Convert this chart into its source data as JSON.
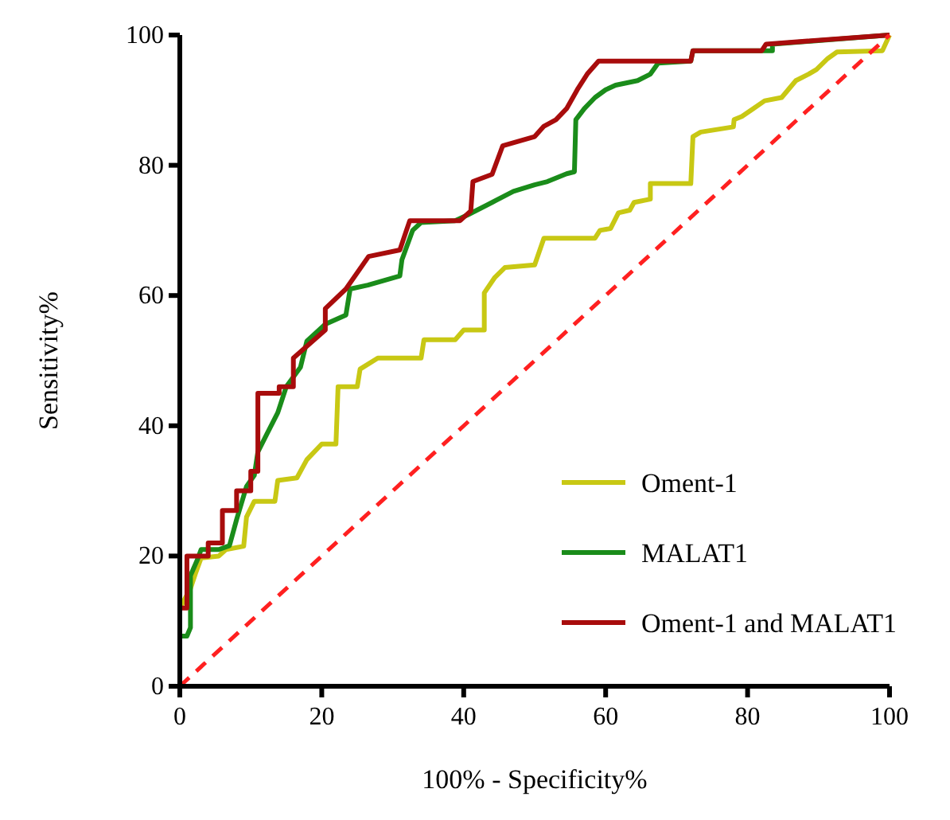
{
  "chart_data": {
    "type": "line",
    "xlabel": "100% - Specificity%",
    "ylabel": "Sensitivity%",
    "xlim": [
      0,
      100
    ],
    "ylim": [
      0,
      100
    ],
    "xticks": [
      0,
      20,
      40,
      60,
      80,
      100
    ],
    "yticks": [
      0,
      20,
      40,
      60,
      80,
      100
    ],
    "grid": false,
    "legend": "bottom right",
    "marker": "none",
    "series": [
      {
        "name": "Oment-1",
        "color": "#c8c814",
        "x": [
          0,
          0,
          1.5,
          2.2,
          3,
          5.5,
          6.5,
          9,
          9.4,
          10.5,
          13.4,
          13.8,
          16.5,
          17.9,
          20,
          22,
          22.3,
          25,
          25.4,
          27.9,
          34,
          34.4,
          38.8,
          40,
          42.9,
          42.9,
          44.4,
          45.8,
          50,
          51.3,
          58.5,
          59.2,
          60.7,
          61.8,
          63.4,
          64,
          66.3,
          66.3,
          72,
          72.3,
          73.4,
          78,
          78.1,
          79.2,
          80.8,
          82.4,
          84.8,
          86.8,
          88.6,
          89.7,
          91.3,
          92.6,
          99,
          100
        ],
        "values": [
          0,
          12,
          15,
          17.3,
          19.7,
          20,
          21,
          21.5,
          26,
          28.4,
          28.4,
          31.6,
          32,
          34.8,
          37.2,
          37.2,
          46,
          46,
          48.7,
          50.4,
          50.4,
          53.2,
          53.2,
          54.7,
          54.7,
          60.4,
          62.8,
          64.3,
          64.7,
          68.8,
          68.8,
          70,
          70.3,
          72.7,
          73.1,
          74.3,
          74.8,
          77.2,
          77.2,
          84.4,
          85.1,
          85.9,
          87,
          87.5,
          88.7,
          89.9,
          90.4,
          93,
          94,
          94.7,
          96.4,
          97.4,
          97.6,
          100
        ]
      },
      {
        "name": "MALAT1",
        "color": "#1a8c1a",
        "x": [
          0,
          0,
          1,
          1.5,
          1.5,
          2.5,
          3,
          5.5,
          7,
          8,
          9.4,
          10.5,
          11,
          12.3,
          13.8,
          15,
          17,
          17.9,
          20.5,
          23.4,
          24,
          26.5,
          31,
          31.3,
          32.8,
          34,
          38.8,
          40.6,
          44,
          47,
          50,
          51.8,
          54.5,
          55.6,
          55.8,
          57,
          58.5,
          60,
          61.4,
          64.5,
          66.3,
          67.4,
          72,
          72.3,
          83.5,
          83.5,
          100
        ],
        "values": [
          0,
          7.7,
          7.7,
          9,
          17,
          19.5,
          21,
          21,
          21.6,
          25.6,
          30.7,
          32.4,
          36,
          38.8,
          42,
          46,
          49,
          53,
          55.6,
          57,
          61,
          61.6,
          63,
          65.5,
          70,
          71.2,
          71.5,
          72.4,
          74.3,
          76,
          77,
          77.5,
          78.7,
          79,
          87,
          88.7,
          90.4,
          91.6,
          92.3,
          93,
          94,
          95.7,
          96,
          97.6,
          97.6,
          98.6,
          100
        ]
      },
      {
        "name": "Oment-1 and MALAT1",
        "color": "#a80c0c",
        "x": [
          0,
          0,
          1,
          1,
          4,
          4,
          6,
          6,
          8,
          8,
          10,
          10,
          11,
          11,
          14,
          14,
          16,
          16,
          20.5,
          20.5,
          23.4,
          26.6,
          31,
          32.4,
          39.5,
          41,
          41.3,
          44,
          45.5,
          50,
          51.3,
          53,
          54.5,
          56,
          57.4,
          59,
          72,
          72.3,
          82,
          82.6,
          100
        ],
        "values": [
          0,
          12,
          12,
          20,
          20,
          22,
          22,
          27,
          27,
          30,
          30,
          33,
          33,
          45,
          45,
          46,
          46,
          50.4,
          54.7,
          58,
          61,
          66,
          67,
          71.5,
          71.5,
          73,
          77.5,
          78.6,
          83,
          84.4,
          86,
          87,
          88.7,
          91.6,
          94,
          96,
          96,
          97.6,
          97.6,
          98.6,
          100
        ]
      },
      {
        "color": "#ff2020",
        "line_style": "dashed",
        "x": [
          0,
          100
        ],
        "values": [
          0,
          100
        ]
      }
    ]
  }
}
